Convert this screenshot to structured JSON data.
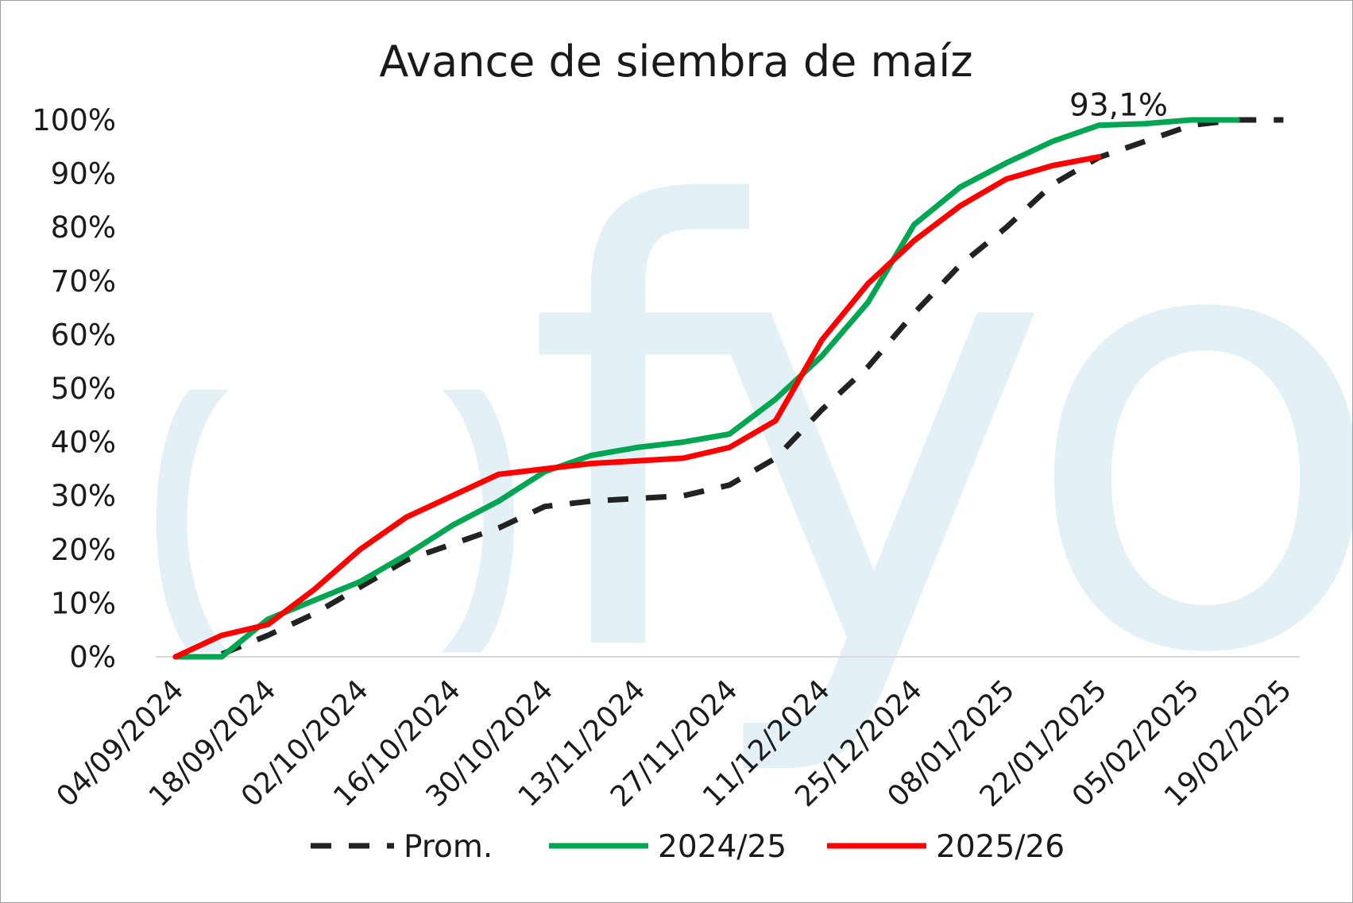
{
  "chart_data": {
    "type": "line",
    "title": "Avance de siembra de maíz",
    "xlabel": "",
    "ylabel": "",
    "x_tick_labels": [
      "04/09/2024",
      "18/09/2024",
      "02/10/2024",
      "16/10/2024",
      "30/10/2024",
      "13/11/2024",
      "27/11/2024",
      "11/12/2024",
      "25/12/2024",
      "08/01/2025",
      "22/01/2025",
      "05/02/2025",
      "19/02/2025"
    ],
    "y_tick_labels": [
      "0%",
      "10%",
      "20%",
      "30%",
      "40%",
      "50%",
      "60%",
      "70%",
      "80%",
      "90%",
      "100%"
    ],
    "ylim": [
      0,
      100
    ],
    "grid": false,
    "legend_position": "bottom",
    "series": [
      {
        "name": "Prom.",
        "color": "#222222",
        "style": "dashed",
        "x": [
          "11/09/2024",
          "18/09/2024",
          "25/09/2024",
          "02/10/2024",
          "09/10/2024",
          "16/10/2024",
          "23/10/2024",
          "30/10/2024",
          "06/11/2024",
          "13/11/2024",
          "20/11/2024",
          "27/11/2024",
          "04/12/2024",
          "11/12/2024",
          "18/12/2024",
          "25/12/2024",
          "01/01/2025",
          "08/01/2025",
          "15/01/2025",
          "22/01/2025",
          "29/01/2025",
          "05/02/2025",
          "12/02/2025",
          "19/02/2025"
        ],
        "values": [
          0.5,
          4,
          8,
          13,
          18,
          21,
          24,
          28,
          29,
          29.5,
          30,
          32,
          37,
          46,
          54,
          64,
          73,
          80,
          88,
          93,
          96,
          99,
          100,
          100
        ]
      },
      {
        "name": "2024/25",
        "color": "#00a651",
        "style": "solid",
        "x": [
          "04/09/2024",
          "11/09/2024",
          "18/09/2024",
          "25/09/2024",
          "02/10/2024",
          "09/10/2024",
          "16/10/2024",
          "23/10/2024",
          "30/10/2024",
          "06/11/2024",
          "13/11/2024",
          "20/11/2024",
          "27/11/2024",
          "04/12/2024",
          "11/12/2024",
          "18/12/2024",
          "25/12/2024",
          "01/01/2025",
          "08/01/2025",
          "15/01/2025",
          "22/01/2025",
          "29/01/2025",
          "05/02/2025",
          "12/02/2025"
        ],
        "values": [
          0,
          0,
          7,
          10.5,
          14,
          19,
          24.5,
          29,
          34.5,
          37.5,
          39,
          40,
          41.5,
          48,
          56,
          66,
          80.5,
          87.5,
          92,
          96,
          99,
          99.3,
          100,
          100
        ]
      },
      {
        "name": "2025/26",
        "color": "#ff0000",
        "style": "solid",
        "x": [
          "04/09/2024",
          "11/09/2024",
          "18/09/2024",
          "25/09/2024",
          "02/10/2024",
          "09/10/2024",
          "16/10/2024",
          "23/10/2024",
          "30/10/2024",
          "06/11/2024",
          "13/11/2024",
          "20/11/2024",
          "27/11/2024",
          "04/12/2024",
          "11/12/2024",
          "18/12/2024",
          "25/12/2024",
          "01/01/2025",
          "08/01/2025",
          "15/01/2025",
          "22/01/2025"
        ],
        "values": [
          0,
          4,
          6,
          12.5,
          20,
          26,
          30,
          34,
          35,
          36,
          36.5,
          37,
          39,
          44,
          59,
          69.5,
          77.5,
          84,
          89,
          91.5,
          93.1
        ]
      }
    ],
    "annotations": [
      {
        "text": "93,1%",
        "x": "22/01/2025",
        "y": 93.1
      }
    ]
  },
  "watermark": {
    "text": "fyo",
    "color": "#e3f1f6"
  }
}
